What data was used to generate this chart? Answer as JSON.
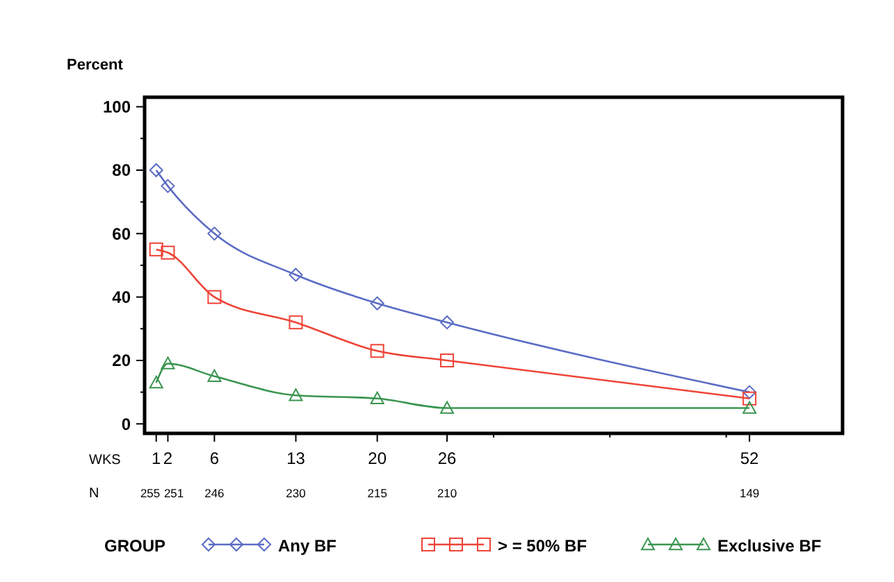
{
  "chart_data": {
    "type": "line",
    "ylabel": "Percent",
    "xlabel": "WKS",
    "legend_title": "GROUP",
    "legend": "bottom",
    "grid": false,
    "x": [
      1,
      2,
      6,
      13,
      20,
      26,
      52
    ],
    "xlim": [
      0,
      60
    ],
    "xticks": [
      1,
      2,
      6,
      13,
      20,
      26,
      52,
      {
        "value": 30,
        "label": null
      },
      {
        "value": 40,
        "label": null
      },
      {
        "value": 50,
        "label": null
      }
    ],
    "ylim": [
      -3,
      103
    ],
    "yticks": [
      0,
      20,
      40,
      60,
      80,
      100,
      {
        "value": 10,
        "label": null
      },
      {
        "value": 30,
        "label": null
      },
      {
        "value": 50,
        "label": null
      },
      {
        "value": 70,
        "label": null
      },
      {
        "value": 90,
        "label": null
      }
    ],
    "series": [
      {
        "name": "Any BF",
        "color": "#5b6cc4",
        "marker": "diamond",
        "values": [
          80,
          75,
          60,
          47,
          38,
          32,
          10
        ]
      },
      {
        "name": "> = 50% BF",
        "color": "#ee4437",
        "marker": "square",
        "values": [
          55,
          54,
          40,
          32,
          23,
          20,
          8
        ]
      },
      {
        "name": "Exclusive BF",
        "color": "#3a9550",
        "marker": "triangle",
        "values": [
          13,
          19,
          15,
          9,
          8,
          5,
          5
        ]
      }
    ],
    "annotations": [
      "N",
      "255",
      "251",
      "246",
      "230",
      "215",
      "210",
      "149"
    ]
  }
}
